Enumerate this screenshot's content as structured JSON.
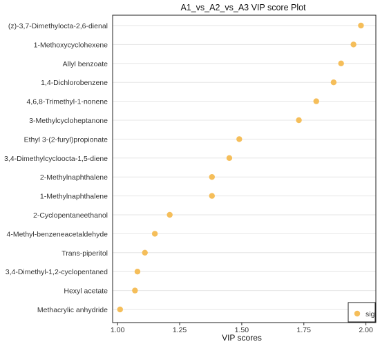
{
  "chart_data": {
    "type": "scatter",
    "title": "A1_vs_A2_vs_A3 VIP score Plot",
    "xlabel": "VIP scores",
    "ylabel": "",
    "xlim": [
      0.98,
      2.04
    ],
    "xticks": [
      "1.00",
      "1.25",
      "1.50",
      "1.75",
      "2.00"
    ],
    "xtick_values": [
      1.0,
      1.25,
      1.5,
      1.75,
      2.0
    ],
    "grid": "horizontal",
    "legend_position": "bottom-right",
    "marker_color": "#F5BE5A",
    "series": [
      {
        "name": "sig",
        "points": [
          {
            "label": "(z)-3,7-Dimethylocta-2,6-dienal",
            "value": 1.98
          },
          {
            "label": "1-Methoxycyclohexene",
            "value": 1.95
          },
          {
            "label": "Allyl benzoate",
            "value": 1.9
          },
          {
            "label": "1,4-Dichlorobenzene",
            "value": 1.87
          },
          {
            "label": "4,6,8-Trimethyl-1-nonene",
            "value": 1.8
          },
          {
            "label": "3-Methylcycloheptanone",
            "value": 1.73
          },
          {
            "label": "Ethyl 3-(2-furyl)propionate",
            "value": 1.49
          },
          {
            "label": "3,4-Dimethylcycloocta-1,5-diene",
            "value": 1.45
          },
          {
            "label": "2-Methylnaphthalene",
            "value": 1.38
          },
          {
            "label": "1-Methylnaphthalene",
            "value": 1.38
          },
          {
            "label": "2-Cyclopentaneethanol",
            "value": 1.21
          },
          {
            "label": "4-Methyl-benzeneacetaldehyde",
            "value": 1.15
          },
          {
            "label": "Trans-piperitol",
            "value": 1.11
          },
          {
            "label": "3,4-Dimethyl-1,2-cyclopentaned",
            "value": 1.08
          },
          {
            "label": "Hexyl acetate",
            "value": 1.07
          },
          {
            "label": "Methacrylic anhydride",
            "value": 1.01
          }
        ]
      }
    ]
  }
}
